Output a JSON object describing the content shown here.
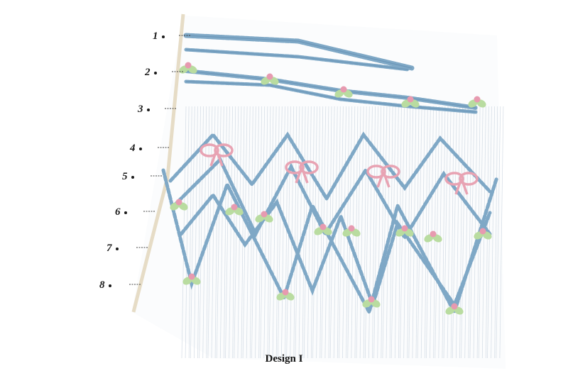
{
  "figure": {
    "caption": "Design I",
    "row_labels": [
      "1",
      "2",
      "3",
      "4",
      "5",
      "6",
      "7",
      "8"
    ]
  },
  "colors": {
    "fabric": "#fbfcfd",
    "pleat_line": "#cfd8e2",
    "cable_blue": "#7fa8c6",
    "cable_blue_dark": "#5f8cb0",
    "bow_pink": "#e8a3b3",
    "rose_pink": "#e79ab0",
    "leaf_green": "#b9dca0",
    "selvedge": "#e6dcc6"
  }
}
